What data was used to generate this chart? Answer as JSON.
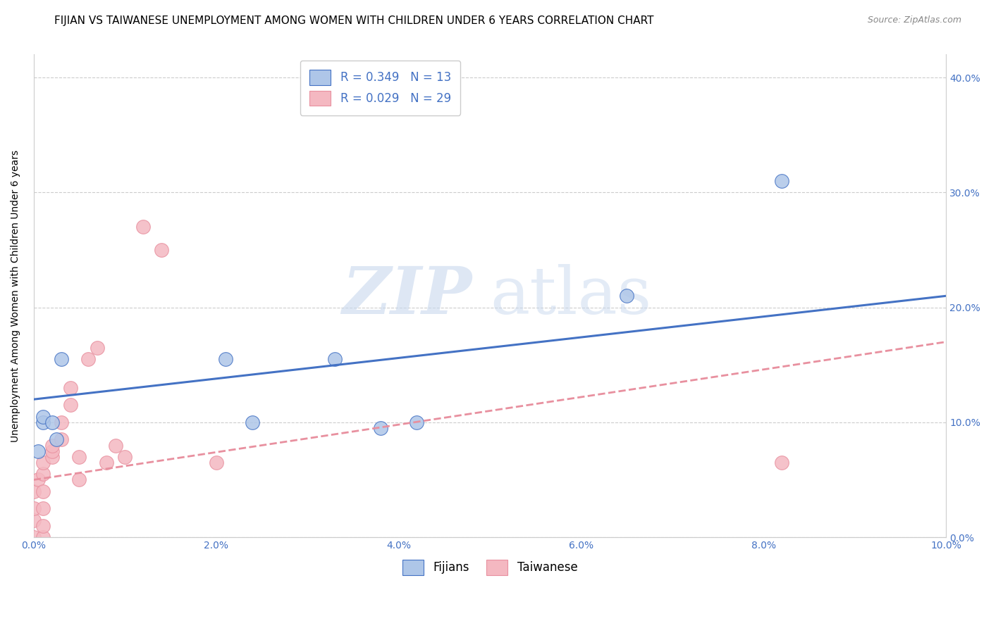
{
  "title": "FIJIAN VS TAIWANESE UNEMPLOYMENT AMONG WOMEN WITH CHILDREN UNDER 6 YEARS CORRELATION CHART",
  "source": "Source: ZipAtlas.com",
  "ylabel": "Unemployment Among Women with Children Under 6 years",
  "xlim": [
    0.0,
    0.1
  ],
  "ylim": [
    0.0,
    0.42
  ],
  "fijians_x": [
    0.0005,
    0.001,
    0.001,
    0.002,
    0.0025,
    0.003,
    0.021,
    0.024,
    0.033,
    0.038,
    0.042,
    0.065,
    0.082
  ],
  "fijians_y": [
    0.075,
    0.1,
    0.105,
    0.1,
    0.085,
    0.155,
    0.155,
    0.1,
    0.155,
    0.095,
    0.1,
    0.21,
    0.31
  ],
  "taiwanese_x": [
    0.0,
    0.0,
    0.0,
    0.0,
    0.0005,
    0.001,
    0.001,
    0.001,
    0.001,
    0.001,
    0.001,
    0.002,
    0.002,
    0.002,
    0.003,
    0.003,
    0.004,
    0.004,
    0.005,
    0.005,
    0.006,
    0.007,
    0.008,
    0.009,
    0.01,
    0.012,
    0.014,
    0.02,
    0.082
  ],
  "taiwanese_y": [
    0.0,
    0.015,
    0.025,
    0.04,
    0.05,
    0.0,
    0.01,
    0.025,
    0.04,
    0.055,
    0.065,
    0.07,
    0.075,
    0.08,
    0.085,
    0.1,
    0.115,
    0.13,
    0.05,
    0.07,
    0.155,
    0.165,
    0.065,
    0.08,
    0.07,
    0.27,
    0.25,
    0.065,
    0.065
  ],
  "fijian_color": "#aec6e8",
  "taiwanese_color": "#f4b8c1",
  "fijian_line_color": "#4472c4",
  "taiwanese_line_color": "#e8909f",
  "R_fijian": 0.349,
  "N_fijian": 13,
  "R_taiwanese": 0.029,
  "N_taiwanese": 29,
  "legend_fijian": "Fijians",
  "legend_taiwanese": "Taiwanese",
  "watermark_zip": "ZIP",
  "watermark_atlas": "atlas",
  "title_fontsize": 11,
  "source_fontsize": 9,
  "label_fontsize": 10,
  "tick_fontsize": 10
}
